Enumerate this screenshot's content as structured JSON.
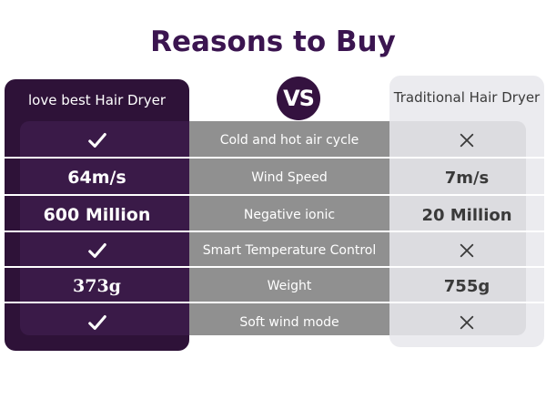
{
  "title": "Reasons to Buy",
  "vs_label": "VS",
  "columns": {
    "left": "love best Hair Dryer",
    "right": "Traditional Hair Dryer"
  },
  "rows": [
    {
      "feature": "Cold and hot air cycle",
      "left": "",
      "left_icon": "checkmark-icon",
      "right": "",
      "right_icon": "x-icon"
    },
    {
      "feature": "Wind Speed",
      "left": "64m/s",
      "right": "7m/s"
    },
    {
      "feature": "Negative ionic",
      "left": "600 Million",
      "right": "20 Million"
    },
    {
      "feature": "Smart Temperature Control",
      "left": "",
      "left_icon": "checkmark-icon",
      "right": "",
      "right_icon": "x-icon"
    },
    {
      "feature": "Weight",
      "left": "373g",
      "right": "755g"
    },
    {
      "feature": "Soft wind mode",
      "left": "",
      "left_icon": "checkmark-icon",
      "right": "",
      "right_icon": "x-icon"
    }
  ],
  "colors": {
    "brand_purple": "#2e1238",
    "middle_gray": "#909090",
    "right_light": "#ebebef"
  }
}
